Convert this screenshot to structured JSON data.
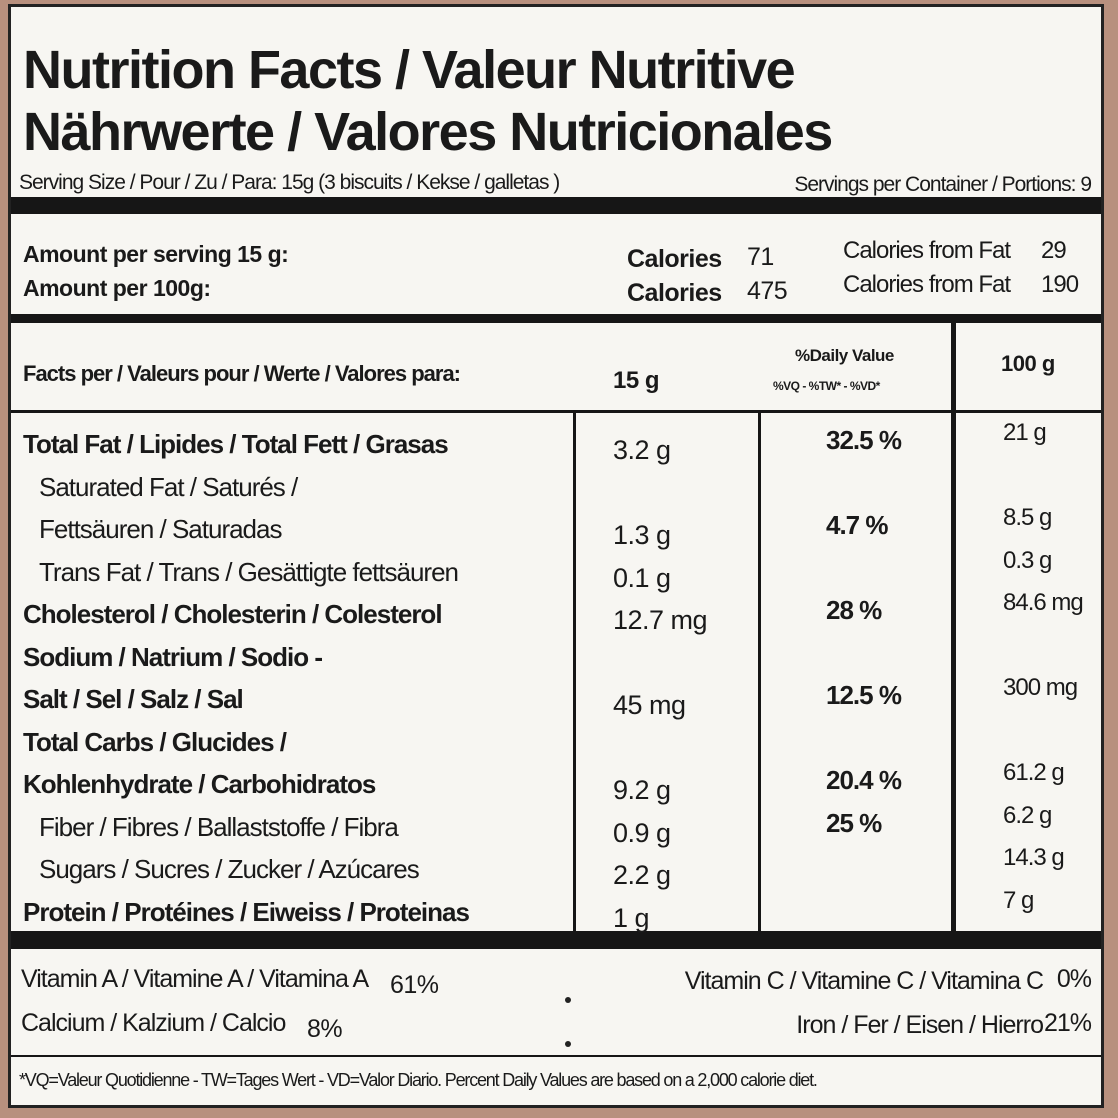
{
  "header": {
    "title_line1": "Nutrition Facts / Valeur Nutritive",
    "title_line2": "Nährwerte / Valores Nutricionales",
    "serving_size": "Serving Size / Pour / Zu / Para: 15g (3 biscuits / Kekse / galletas )",
    "servings_per_container": "Servings per Container / Portions: 9"
  },
  "amounts": [
    {
      "label": "Amount per serving 15 g:",
      "calories_label": "Calories",
      "calories": 71,
      "from_fat_label": "Calories from Fat",
      "from_fat": 29
    },
    {
      "label": "Amount per 100g:",
      "calories_label": "Calories",
      "calories": 475,
      "from_fat_label": "Calories from Fat",
      "from_fat": 190
    }
  ],
  "table": {
    "header": {
      "facts_per": "Facts per / Valeurs pour / Werte / Valores para:",
      "serving": "15 g",
      "daily_value": "%Daily Value",
      "daily_value_abbr": "%VQ - %TW* - %VD*",
      "per_100g": "100 g"
    },
    "rows": [
      {
        "name": [
          "Total Fat / Lipides / Total Fett / Grasas"
        ],
        "per_serving": "3.2 g",
        "daily_value": "32.5 %",
        "per_100g": "21 g",
        "bold": true
      },
      {
        "name": [
          "Saturated Fat / Saturés /",
          "Fettsäuren / Saturadas"
        ],
        "per_serving": "1.3 g",
        "daily_value": "4.7 %",
        "per_100g": "8.5 g",
        "bold": false
      },
      {
        "name": [
          "Trans Fat / Trans / Gesättigte fettsäuren"
        ],
        "per_serving": "0.1 g",
        "daily_value": null,
        "per_100g": "0.3 g",
        "bold": false
      },
      {
        "name": [
          "Cholesterol / Cholesterin / Colesterol"
        ],
        "per_serving": "12.7 mg",
        "daily_value": "28 %",
        "per_100g": "84.6 mg",
        "bold": true
      },
      {
        "name": [
          "Sodium / Natrium / Sodio -",
          "Salt / Sel / Salz / Sal"
        ],
        "per_serving": "45 mg",
        "daily_value": "12.5 %",
        "per_100g": "300 mg",
        "bold": true
      },
      {
        "name": [
          "Total Carbs / Glucides /",
          "Kohlenhydrate / Carbohidratos"
        ],
        "per_serving": "9.2 g",
        "daily_value": "20.4 %",
        "per_100g": "61.2 g",
        "bold": true
      },
      {
        "name": [
          "Fiber / Fibres / Ballaststoffe / Fibra"
        ],
        "per_serving": "0.9 g",
        "daily_value": "25 %",
        "per_100g": "6.2 g",
        "bold": false
      },
      {
        "name": [
          "Sugars / Sucres / Zucker / Azúcares"
        ],
        "per_serving": "2.2 g",
        "daily_value": null,
        "per_100g": "14.3 g",
        "bold": false
      },
      {
        "name": [
          "Protein / Protéines / Eiweiss / Proteinas"
        ],
        "per_serving": "1 g",
        "daily_value": null,
        "per_100g": "7 g",
        "bold": true
      }
    ]
  },
  "vitamins": [
    {
      "name": "Vitamin A / Vitamine A / Vitamina A",
      "value": "61%"
    },
    {
      "name": "Vitamin C / Vitamine C / Vitamina C",
      "value": "0%"
    },
    {
      "name": "Calcium / Kalzium / Calcio",
      "value": "8%"
    },
    {
      "name": "Iron / Fer / Eisen / Hierro",
      "value": "21%"
    }
  ],
  "footnote": "*VQ=Valeur Quotidienne - TW=Tages Wert - VD=Valor Diario. Percent Daily Values are based on a 2,000 calorie diet."
}
